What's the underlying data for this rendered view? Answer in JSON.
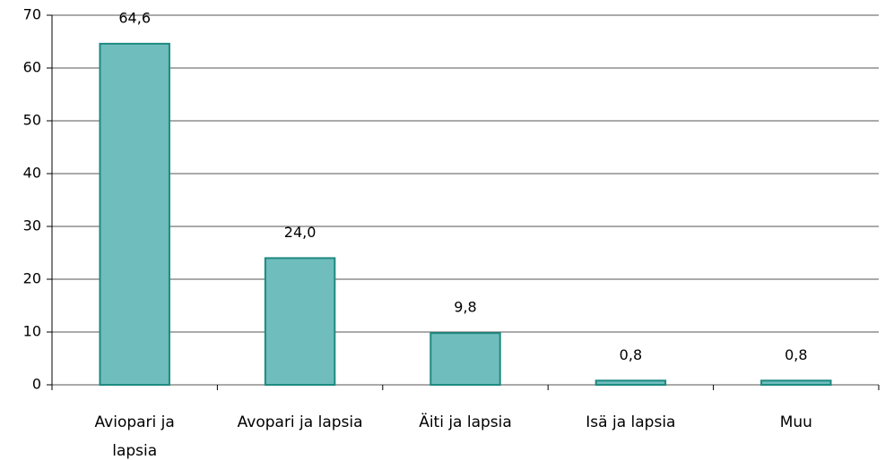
{
  "chart_data": {
    "type": "bar",
    "categories": [
      "Aviopari ja lapsia",
      "Avopari ja lapsia",
      "Äiti ja lapsia",
      "Isä ja lapsia",
      "Muu"
    ],
    "values": [
      64.6,
      24.0,
      9.8,
      0.8,
      0.8
    ],
    "value_labels": [
      "64,6",
      "24,0",
      "9,8",
      "0,8",
      "0,8"
    ],
    "color": "#70bdbd",
    "ylim": [
      0,
      70
    ],
    "yticks": [
      0,
      10,
      20,
      30,
      40,
      50,
      60,
      70
    ],
    "grid": true
  }
}
